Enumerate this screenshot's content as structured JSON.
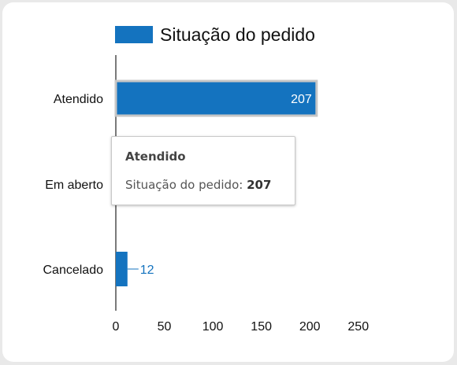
{
  "chart_data": {
    "type": "bar",
    "orientation": "horizontal",
    "categories": [
      "Atendido",
      "Em aberto",
      "Cancelado"
    ],
    "series": [
      {
        "name": "Situação do pedido",
        "values": [
          207,
          null,
          12
        ],
        "data_labels": [
          "207",
          "",
          "12"
        ]
      }
    ],
    "x_ticks": [
      "0",
      "50",
      "100",
      "150",
      "200",
      "250"
    ],
    "xlim": [
      0,
      250
    ],
    "grid": false,
    "legend_position": "top",
    "colors": {
      "bar": "#1473bf",
      "label_outside": "#1473bf",
      "label_inside": "#ffffff"
    }
  },
  "tooltip": {
    "title": "Atendido",
    "series_label": "Situação do pedido:",
    "value": "207"
  }
}
